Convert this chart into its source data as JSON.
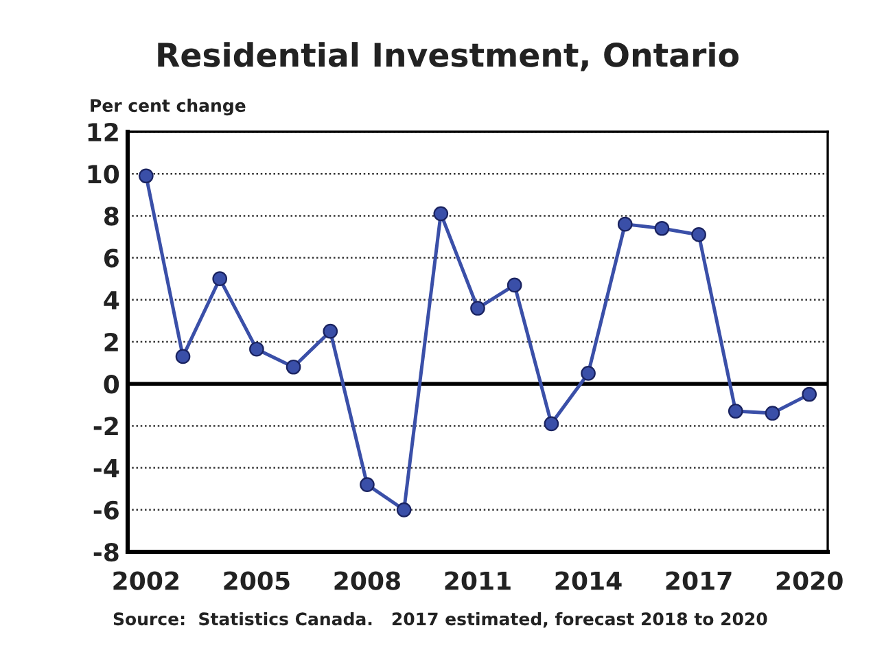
{
  "chart_data": {
    "type": "line",
    "title": "Residential Investment, Ontario",
    "ylabel": "Per cent change",
    "x": [
      2002,
      2003,
      2004,
      2005,
      2006,
      2007,
      2008,
      2009,
      2010,
      2011,
      2012,
      2013,
      2014,
      2015,
      2016,
      2017,
      2018,
      2019,
      2020
    ],
    "series": [
      {
        "color": "#3a4fa8",
        "values": [
          9.9,
          1.3,
          5.0,
          1.65,
          0.8,
          2.5,
          -4.8,
          -6.0,
          8.1,
          3.6,
          4.7,
          -1.9,
          0.5,
          7.6,
          7.4,
          7.1,
          -1.3,
          -1.4,
          -0.5
        ]
      }
    ],
    "xlim": [
      2001.5,
      2020.5
    ],
    "xticks": [
      2002,
      2005,
      2008,
      2011,
      2014,
      2017,
      2020
    ],
    "ylim": [
      -8,
      12
    ],
    "yticks": [
      -8,
      -6,
      -4,
      -2,
      0,
      2,
      4,
      6,
      8,
      10,
      12
    ],
    "ref_lines": [
      {
        "axis": "y",
        "value": 0,
        "color": "#000000",
        "line_style": "solid"
      }
    ],
    "grid": "y",
    "legend": false,
    "marker": "circle",
    "line_style": "solid",
    "annotations": [
      "Source:  Statistics Canada.   2017 estimated, forecast 2018 to 2020"
    ]
  }
}
